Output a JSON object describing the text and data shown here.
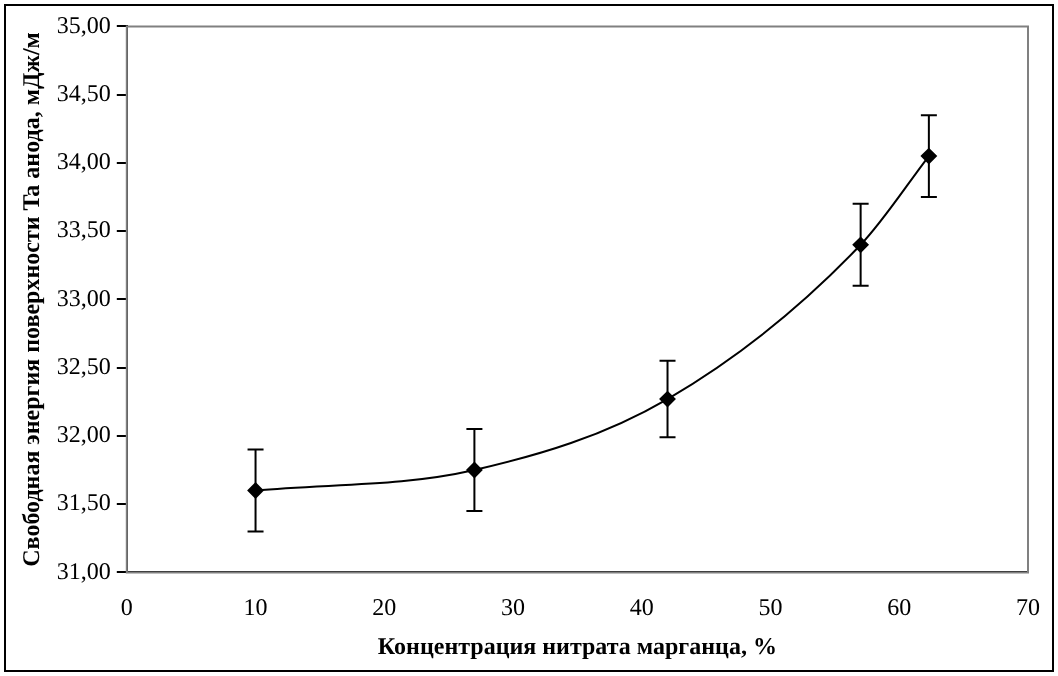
{
  "chart_data": {
    "type": "line",
    "xlabel": "Концентрация нитрата марганца, %",
    "ylabel": "Свободная энергия поверхности Ta анода, мДж/м",
    "x": [
      10,
      27,
      42,
      57,
      62.3
    ],
    "series": [
      {
        "color": "#000000",
        "values": [
          31.6,
          31.75,
          32.27,
          33.4,
          34.05
        ],
        "errors": [
          0.3,
          0.3,
          0.28,
          0.3,
          0.3
        ]
      }
    ],
    "xlim": [
      0,
      70
    ],
    "xticks": [
      0,
      10,
      20,
      30,
      40,
      50,
      60,
      70
    ],
    "ylim": [
      31,
      35
    ],
    "yticks": [
      {
        "value": 31,
        "label": "31,00"
      },
      {
        "value": 31.5,
        "label": "31,50"
      },
      {
        "value": 32,
        "label": "32,00"
      },
      {
        "value": 32.5,
        "label": "32,50"
      },
      {
        "value": 33,
        "label": "33,00"
      },
      {
        "value": 33.5,
        "label": "33,50"
      },
      {
        "value": 34,
        "label": "34,00"
      },
      {
        "value": 34.5,
        "label": "34,50"
      },
      {
        "value": 35,
        "label": "35,00"
      }
    ],
    "grid": false,
    "legend": false,
    "marker": "diamond",
    "line_style": "solid"
  }
}
